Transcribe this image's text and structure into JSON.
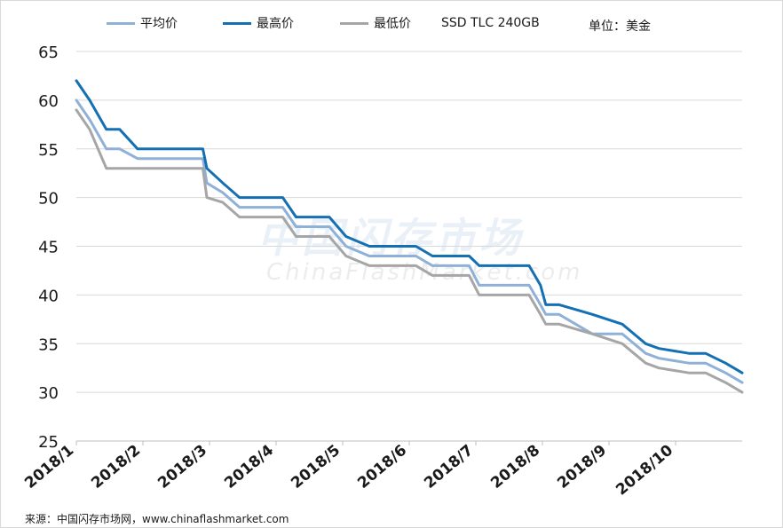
{
  "watermark": {
    "cn": "中国闪存市场",
    "en": "ChinaFlashMarket.com"
  },
  "source": "来源：中国闪存市场网，www.chinaflashmarket.com",
  "chart_data": {
    "type": "line",
    "title": "SSD TLC 240GB",
    "unit_label": "单位：美金",
    "ylim": [
      25,
      65
    ],
    "y_ticks": [
      25,
      30,
      35,
      40,
      45,
      50,
      55,
      60,
      65
    ],
    "x_labels": [
      "2018/1",
      "2018/2",
      "2018/3",
      "2018/4",
      "2018/5",
      "2018/6",
      "2018/7",
      "2018/8",
      "2018/9",
      "2018/10"
    ],
    "x_range": [
      0,
      10
    ],
    "grid": true,
    "legend_position": "top",
    "series": [
      {
        "name": "平均价",
        "color": "#8fb0d7",
        "x": [
          0,
          0.2,
          0.45,
          0.65,
          0.92,
          1.1,
          1.9,
          1.96,
          2.2,
          2.45,
          2.6,
          3.1,
          3.3,
          3.6,
          3.8,
          4.05,
          4.4,
          4.6,
          5.1,
          5.35,
          5.9,
          6.05,
          6.45,
          6.8,
          6.97,
          7.05,
          7.25,
          7.5,
          7.75,
          8.2,
          8.55,
          8.75,
          9.2,
          9.45,
          9.75,
          10
        ],
        "y": [
          60,
          58,
          55,
          55,
          54,
          54,
          54,
          51.5,
          50.5,
          49,
          49,
          49,
          47,
          47,
          47,
          45,
          44,
          44,
          44,
          43,
          43,
          41,
          41,
          41,
          39,
          38,
          38,
          37,
          36,
          36,
          34,
          33.5,
          33,
          33,
          32,
          31
        ]
      },
      {
        "name": "最高价",
        "color": "#1470b3",
        "x": [
          0,
          0.2,
          0.45,
          0.65,
          0.92,
          1.1,
          1.9,
          1.96,
          2.2,
          2.45,
          2.6,
          3.1,
          3.3,
          3.6,
          3.8,
          4.05,
          4.4,
          4.6,
          5.1,
          5.35,
          5.9,
          6.05,
          6.45,
          6.8,
          6.97,
          7.05,
          7.25,
          7.5,
          7.75,
          8.2,
          8.55,
          8.75,
          9.2,
          9.45,
          9.75,
          10
        ],
        "y": [
          62,
          60,
          57,
          57,
          55,
          55,
          55,
          53,
          51.5,
          50,
          50,
          50,
          48,
          48,
          48,
          46,
          45,
          45,
          45,
          44,
          44,
          43,
          43,
          43,
          41,
          39,
          39,
          38.5,
          38,
          37,
          35,
          34.5,
          34,
          34,
          33,
          32
        ]
      },
      {
        "name": "最低价",
        "color": "#a6a6a6",
        "x": [
          0,
          0.2,
          0.45,
          0.65,
          0.92,
          1.1,
          1.9,
          1.96,
          2.2,
          2.45,
          2.6,
          3.1,
          3.3,
          3.6,
          3.8,
          4.05,
          4.4,
          4.6,
          5.1,
          5.35,
          5.9,
          6.05,
          6.45,
          6.8,
          6.97,
          7.05,
          7.25,
          7.5,
          7.75,
          8.2,
          8.55,
          8.75,
          9.2,
          9.45,
          9.75,
          10
        ],
        "y": [
          59,
          57,
          53,
          53,
          53,
          53,
          53,
          50,
          49.5,
          48,
          48,
          48,
          46,
          46,
          46,
          44,
          43,
          43,
          43,
          42,
          42,
          40,
          40,
          40,
          38,
          37,
          37,
          36.5,
          36,
          35,
          33,
          32.5,
          32,
          32,
          31,
          30
        ]
      }
    ]
  }
}
